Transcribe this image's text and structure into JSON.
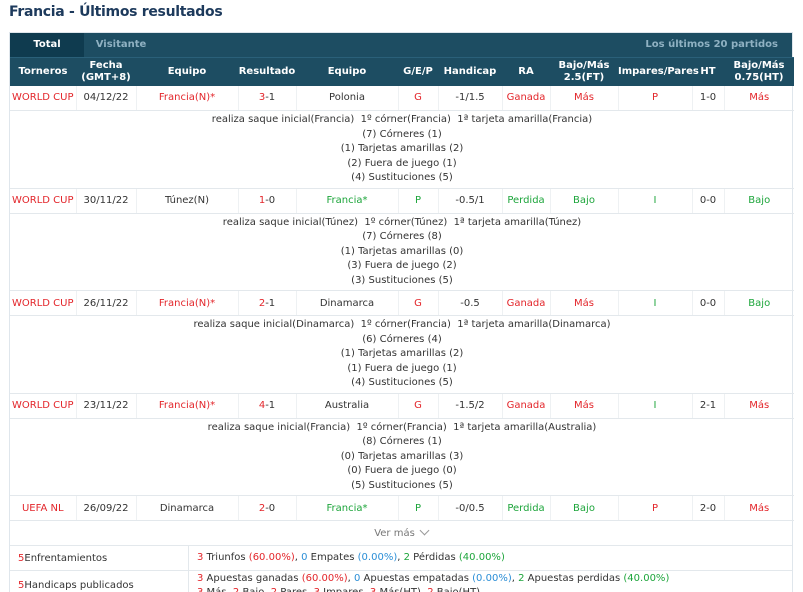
{
  "title": "Francia - Últimos resultados",
  "tabs": {
    "total": "Total",
    "visitante": "Visitante",
    "right": "Los últimos 20 partidos"
  },
  "headers": [
    "Torneros",
    "Fecha\n(GMT+8)",
    "Equipo",
    "Resultado",
    "Equipo",
    "G/E/P",
    "Handicap",
    "RA",
    "Bajo/Más\n2.5(FT)",
    "Impares/Pares",
    "HT",
    "Bajo/Más\n0.75(HT)"
  ],
  "matches": [
    {
      "torneo": "WORLD CUP",
      "fecha": "04/12/22",
      "home": "Francia(N)*",
      "home_red": true,
      "score_a": "3",
      "score_b": "-1",
      "away": "Polonia",
      "away_green": false,
      "gep": "G",
      "gep_color": "red",
      "handicap": "-1/1.5",
      "ra": "Ganada",
      "ra_color": "red",
      "bm25": "Más",
      "bm25_color": "red",
      "ip": "P",
      "ip_color": "red",
      "ht": "1-0",
      "bm075": "Más",
      "bm075_color": "red",
      "details": [
        "realiza saque inicial(Francia)  1º córner(Francia)  1ª tarjeta amarilla(Francia)",
        "(7) Córneres (1)",
        "(1) Tarjetas amarillas (2)",
        "(2) Fuera de juego (1)",
        "(4) Sustituciones (5)"
      ]
    },
    {
      "torneo": "WORLD CUP",
      "fecha": "30/11/22",
      "home": "Túnez(N)",
      "home_red": false,
      "score_a": "1",
      "score_b": "-0",
      "away": "Francia*",
      "away_green": true,
      "gep": "P",
      "gep_color": "green",
      "handicap": "-0.5/1",
      "ra": "Perdida",
      "ra_color": "green",
      "bm25": "Bajo",
      "bm25_color": "green",
      "ip": "I",
      "ip_color": "green",
      "ht": "0-0",
      "bm075": "Bajo",
      "bm075_color": "green",
      "details": [
        "realiza saque inicial(Túnez)  1º córner(Túnez)  1ª tarjeta amarilla(Túnez)",
        "(7) Córneres (8)",
        "(1) Tarjetas amarillas (0)",
        "(3) Fuera de juego (2)",
        "(3) Sustituciones (5)"
      ]
    },
    {
      "torneo": "WORLD CUP",
      "fecha": "26/11/22",
      "home": "Francia(N)*",
      "home_red": true,
      "score_a": "2",
      "score_b": "-1",
      "away": "Dinamarca",
      "away_green": false,
      "gep": "G",
      "gep_color": "red",
      "handicap": "-0.5",
      "ra": "Ganada",
      "ra_color": "red",
      "bm25": "Más",
      "bm25_color": "red",
      "ip": "I",
      "ip_color": "green",
      "ht": "0-0",
      "bm075": "Bajo",
      "bm075_color": "green",
      "details": [
        "realiza saque inicial(Dinamarca)  1º córner(Francia)  1ª tarjeta amarilla(Dinamarca)",
        "(6) Córneres (4)",
        "(1) Tarjetas amarillas (2)",
        "(1) Fuera de juego (1)",
        "(4) Sustituciones (5)"
      ]
    },
    {
      "torneo": "WORLD CUP",
      "fecha": "23/11/22",
      "home": "Francia(N)*",
      "home_red": true,
      "score_a": "4",
      "score_b": "-1",
      "away": "Australia",
      "away_green": false,
      "gep": "G",
      "gep_color": "red",
      "handicap": "-1.5/2",
      "ra": "Ganada",
      "ra_color": "red",
      "bm25": "Más",
      "bm25_color": "red",
      "ip": "I",
      "ip_color": "green",
      "ht": "2-1",
      "bm075": "Más",
      "bm075_color": "red",
      "details": [
        "realiza saque inicial(Francia)  1º córner(Francia)  1ª tarjeta amarilla(Australia)",
        "(8) Córneres (1)",
        "(0) Tarjetas amarillas (3)",
        "(0) Fuera de juego (0)",
        "(5) Sustituciones (5)"
      ]
    },
    {
      "torneo": "UEFA NL",
      "fecha": "26/09/22",
      "home": "Dinamarca",
      "home_red": false,
      "score_a": "2",
      "score_b": "-0",
      "away": "Francia*",
      "away_green": true,
      "gep": "P",
      "gep_color": "green",
      "handicap": "-0/0.5",
      "ra": "Perdida",
      "ra_color": "green",
      "bm25": "Bajo",
      "bm25_color": "green",
      "ip": "P",
      "ip_color": "red",
      "ht": "2-0",
      "bm075": "Más",
      "bm075_color": "red",
      "details": []
    }
  ],
  "ver_mas": "Ver más",
  "summary": {
    "enfrentamientos_count": "5",
    "enfrentamientos_label": " Enfrentamientos",
    "triunfos_n": "3",
    "triunfos_txt": " Triunfos ",
    "triunfos_pct": "(60.00%)",
    "empates_n": "0",
    "empates_txt": " Empates ",
    "empates_pct": "(0.00%)",
    "perdidas_n": "2",
    "perdidas_txt": " Pérdidas ",
    "perdidas_pct": "(40.00%)",
    "handicaps_count": "5",
    "handicaps_label": " Handicaps publicados",
    "ag_n": "3",
    "ag_txt": " Apuestas ganadas ",
    "ag_pct": "(60.00%)",
    "ae_n": "0",
    "ae_txt": " Apuestas empatadas ",
    "ae_pct": "(0.00%)",
    "ap_n": "2",
    "ap_txt": " Apuestas perdidas ",
    "ap_pct": "(40.00%)",
    "line2": [
      {
        "n": "3",
        "t": " Más, "
      },
      {
        "n": "2",
        "t": " Bajo, "
      },
      {
        "n": "2",
        "t": " Pares, "
      },
      {
        "n": "3",
        "t": " Impares, "
      },
      {
        "n": "3",
        "t": " Más(HT), "
      },
      {
        "n": "2",
        "t": " Bajo(HT)"
      }
    ]
  },
  "colors": {
    "red": "#e3262b",
    "green": "#1da53b",
    "blue": "#2b8ed6",
    "header": "#1d4d62"
  }
}
